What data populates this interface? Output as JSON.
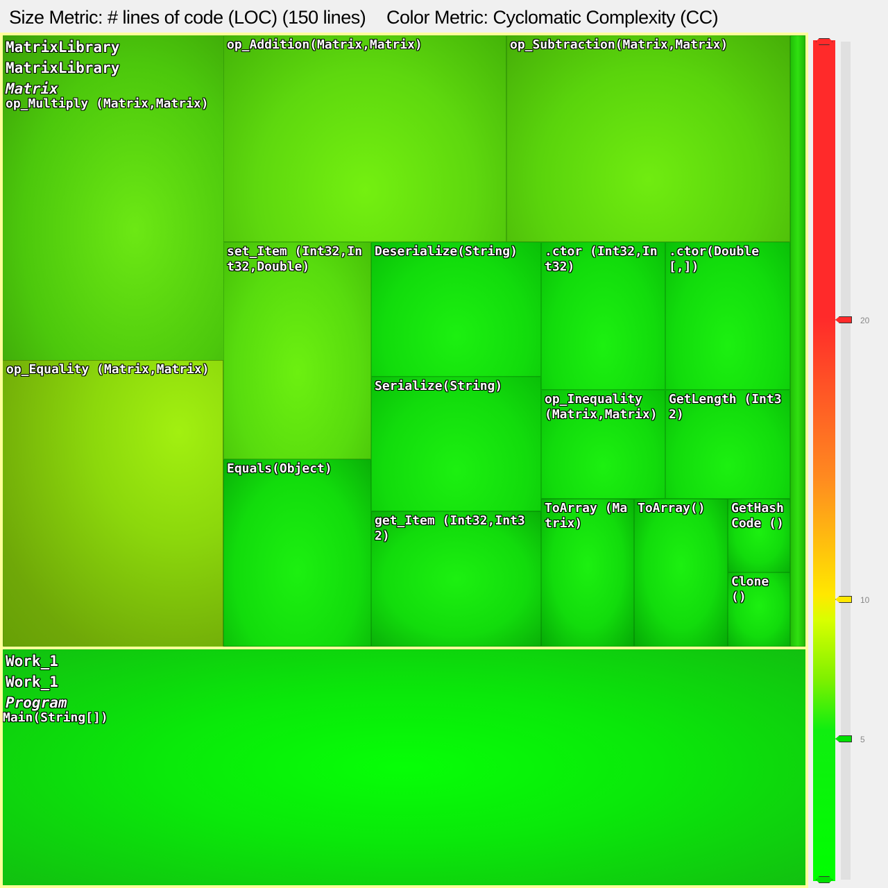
{
  "header": {
    "size_metric": "Size Metric: # lines of code (LOC) (150 lines)",
    "color_metric": "Color Metric: Cyclomatic Complexity (CC)"
  },
  "treemap": {
    "group1": {
      "assembly": "MatrixLibrary",
      "namespace": "MatrixLibrary",
      "type": "Matrix",
      "method": "op_Multiply (Matrix,Matrix)"
    },
    "tiles": {
      "op_equality": "op_Equality (Matrix,Matrix)",
      "op_addition": "op_Addition(Matrix,Matrix)",
      "op_subtraction": "op_Subtraction(Matrix,Matrix)",
      "set_item": "set_Item (Int32,Int32,Double)",
      "deserialize": "Deserialize(String)",
      "ctor_int": ".ctor (Int32,Int32)",
      "ctor_double": ".ctor(Double [,])",
      "serialize": "Serialize(String)",
      "op_inequality": "op_Inequality (Matrix,Matrix)",
      "getlength": "GetLength (Int32)",
      "equals": "Equals(Object)",
      "get_item": "get_Item (Int32,Int32)",
      "toarray_matrix": "ToArray (Matrix)",
      "toarray": "ToArray()",
      "gethashcode": "GetHashCode ()",
      "clone": "Clone ()"
    },
    "group2": {
      "assembly": "Work_1",
      "namespace": "Work_1",
      "type": "Program",
      "method": "Main(String[])"
    }
  },
  "legend": {
    "ticks": [
      "20",
      "10",
      "5"
    ],
    "colors": {
      "high": "#ff2a2a",
      "mid": "#ffe800",
      "low": "#00ff00"
    }
  }
}
